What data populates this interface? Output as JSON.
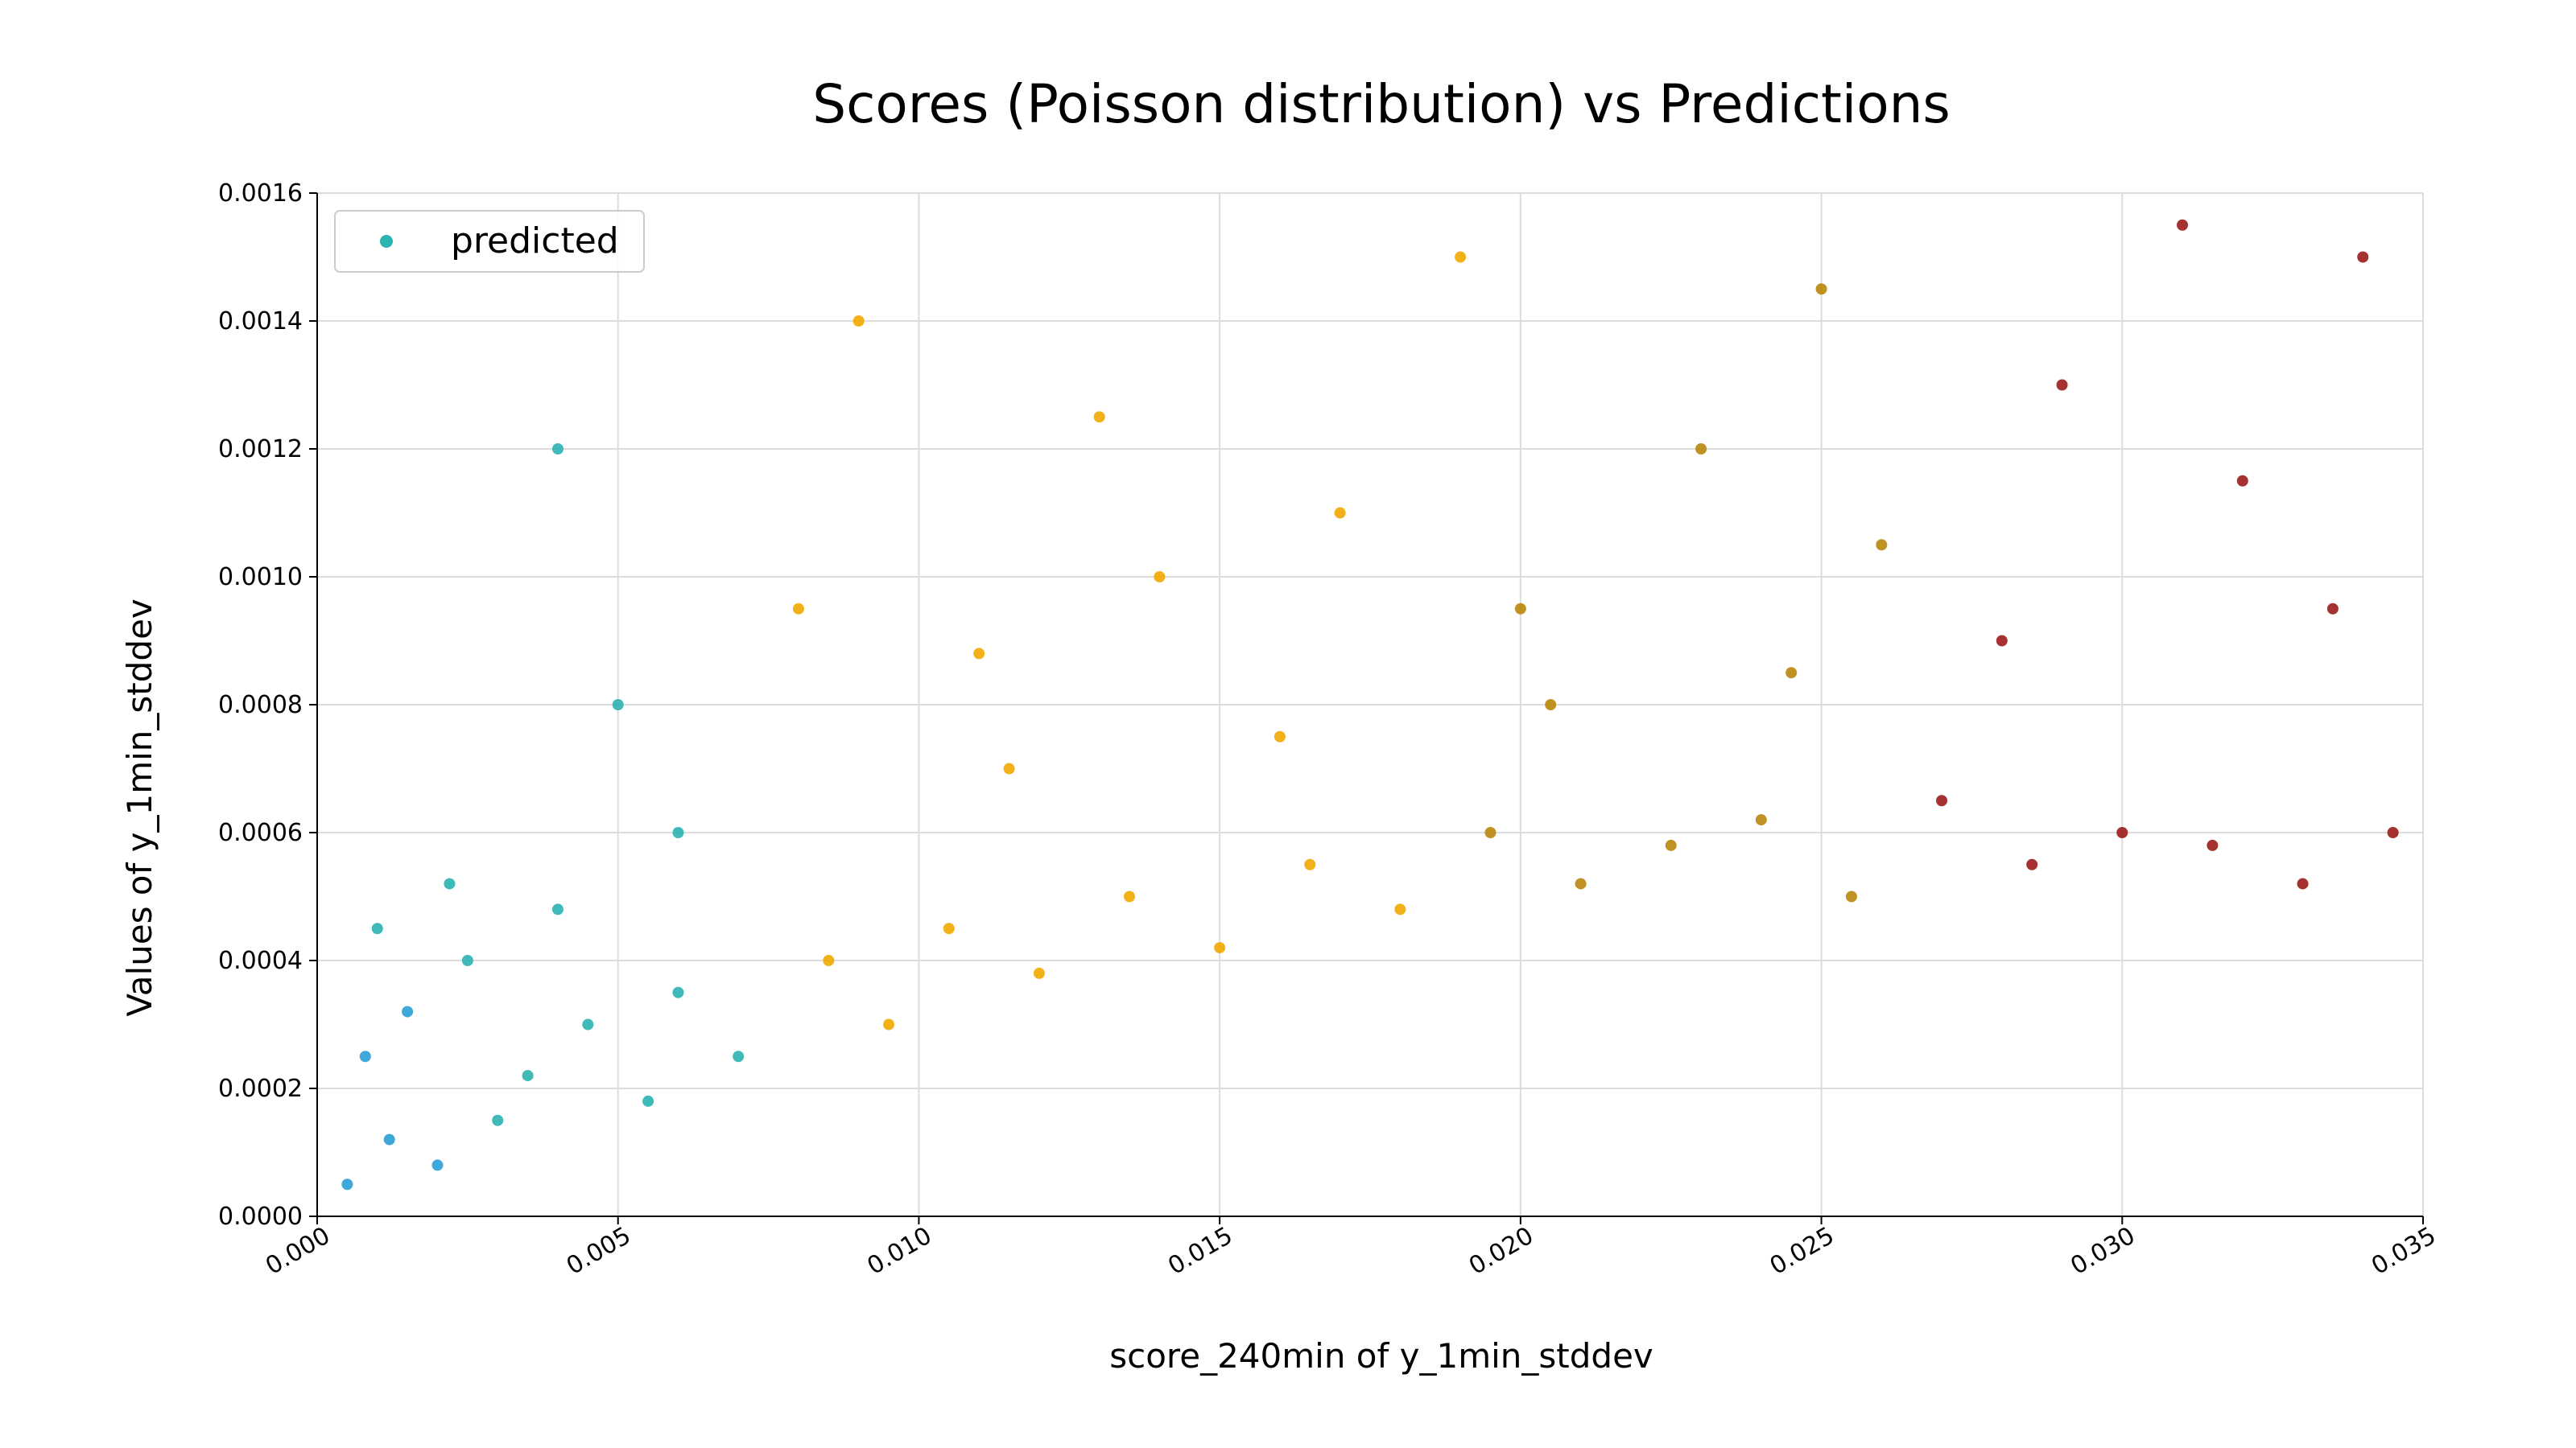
{
  "chart_data": {
    "type": "scatter",
    "title": "Scores (Poisson distribution) vs Predictions",
    "xlabel": "score_240min of y_1min_stddev",
    "ylabel": "Values of y_1min_stddev",
    "xlim": [
      0.0,
      0.035
    ],
    "ylim": [
      0.0,
      0.0016
    ],
    "x_ticks": [
      "0.000",
      "0.005",
      "0.010",
      "0.015",
      "0.020",
      "0.025",
      "0.030",
      "0.035"
    ],
    "y_ticks": [
      "0.0000",
      "0.0002",
      "0.0004",
      "0.0006",
      "0.0008",
      "0.0010",
      "0.0012",
      "0.0014",
      "0.0016"
    ],
    "grid": true,
    "legend": {
      "placement": "top-left",
      "entries": [
        {
          "label": "predicted",
          "color": "#2bb3b1"
        }
      ]
    },
    "colormap": [
      "#2a9fd6",
      "#2bb3b1",
      "#e7a40a",
      "#f2a900",
      "#b8860b",
      "#9b1b1b"
    ],
    "series": [
      {
        "name": "predicted",
        "points": [
          [
            0.0005,
            5e-05
          ],
          [
            0.0012,
            0.00012
          ],
          [
            0.002,
            8e-05
          ],
          [
            0.003,
            0.00015
          ],
          [
            0.0008,
            0.00025
          ],
          [
            0.0015,
            0.00032
          ],
          [
            0.0025,
            0.0004
          ],
          [
            0.0035,
            0.00022
          ],
          [
            0.0045,
            0.0003
          ],
          [
            0.0055,
            0.00018
          ],
          [
            0.001,
            0.00045
          ],
          [
            0.0022,
            0.00052
          ],
          [
            0.004,
            0.00048
          ],
          [
            0.006,
            0.00035
          ],
          [
            0.007,
            0.00025
          ],
          [
            0.0085,
            0.0004
          ],
          [
            0.0095,
            0.0003
          ],
          [
            0.0105,
            0.00045
          ],
          [
            0.012,
            0.00038
          ],
          [
            0.0135,
            0.0005
          ],
          [
            0.015,
            0.00042
          ],
          [
            0.0165,
            0.00055
          ],
          [
            0.018,
            0.00048
          ],
          [
            0.0195,
            0.0006
          ],
          [
            0.021,
            0.00052
          ],
          [
            0.0225,
            0.00058
          ],
          [
            0.024,
            0.00062
          ],
          [
            0.0255,
            0.0005
          ],
          [
            0.027,
            0.00065
          ],
          [
            0.0285,
            0.00055
          ],
          [
            0.03,
            0.0006
          ],
          [
            0.0315,
            0.00058
          ],
          [
            0.033,
            0.00052
          ],
          [
            0.0345,
            0.0006
          ],
          [
            0.005,
            0.0008
          ],
          [
            0.008,
            0.00095
          ],
          [
            0.011,
            0.00088
          ],
          [
            0.014,
            0.001
          ],
          [
            0.017,
            0.0011
          ],
          [
            0.02,
            0.00095
          ],
          [
            0.023,
            0.0012
          ],
          [
            0.026,
            0.00105
          ],
          [
            0.029,
            0.0013
          ],
          [
            0.032,
            0.00115
          ],
          [
            0.004,
            0.0012
          ],
          [
            0.009,
            0.0014
          ],
          [
            0.013,
            0.00125
          ],
          [
            0.019,
            0.0015
          ],
          [
            0.025,
            0.00145
          ],
          [
            0.031,
            0.00155
          ],
          [
            0.034,
            0.0015
          ],
          [
            0.006,
            0.0006
          ],
          [
            0.0115,
            0.0007
          ],
          [
            0.016,
            0.00075
          ],
          [
            0.0205,
            0.0008
          ],
          [
            0.0245,
            0.00085
          ],
          [
            0.028,
            0.0009
          ],
          [
            0.0335,
            0.00095
          ]
        ]
      }
    ]
  }
}
